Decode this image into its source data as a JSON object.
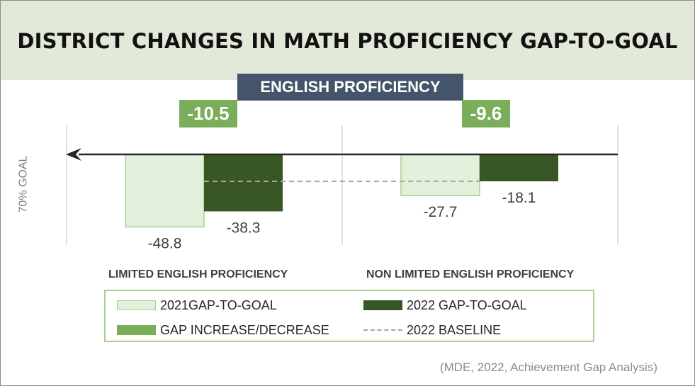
{
  "chart_data": {
    "type": "bar",
    "title": "DISTRICT CHANGES IN MATH PROFICIENCY GAP-TO-GOAL",
    "subtitle": "ENGLISH PROFICIENCY",
    "goal_label": "70% GOAL",
    "categories": [
      "LIMITED ENGLISH PROFICIENCY",
      "NON LIMITED ENGLISH PROFICIENCY"
    ],
    "series": [
      {
        "name": "2021GAP-TO-GOAL",
        "values": [
          -48.8,
          -27.7
        ],
        "labels": [
          "-48.8",
          "-27.7"
        ],
        "color": "#e2efda",
        "border": "#a9d08e"
      },
      {
        "name": "2022 GAP-TO-GOAL",
        "values": [
          -38.3,
          -18.1
        ],
        "labels": [
          "-38.3",
          "-18.1"
        ],
        "color": "#375623"
      }
    ],
    "changes": [
      {
        "category": "LIMITED ENGLISH PROFICIENCY",
        "value": -10.5,
        "label": "-10.5"
      },
      {
        "category": "NON LIMITED ENGLISH PROFICIENCY",
        "value": -9.6,
        "label": "-9.6"
      }
    ],
    "baseline": {
      "name": "2022 BASELINE",
      "value": -18.1,
      "style": "dashed",
      "color": "#a6a6a6"
    },
    "ylim": [
      -60,
      0
    ],
    "grid": "vertical separators",
    "legend": {
      "placement": "bottom",
      "items": [
        {
          "label": "2021GAP-TO-GOAL",
          "color": "#e2efda",
          "border": "#a9d08e"
        },
        {
          "label": "2022 GAP-TO-GOAL",
          "color": "#375623"
        },
        {
          "label": "GAP INCREASE/DECREASE",
          "color": "#7aae5b"
        },
        {
          "label": "2022 BASELINE",
          "color": "#a6a6a6",
          "style": "dashed"
        }
      ]
    },
    "source": "(MDE, 2022, Achievement Gap Analysis)",
    "colors": {
      "header_band": "#e2e9d9",
      "subtitle_bg": "#44546a",
      "change_box": "#7aae5b",
      "axis_arrow": "#262626"
    }
  }
}
